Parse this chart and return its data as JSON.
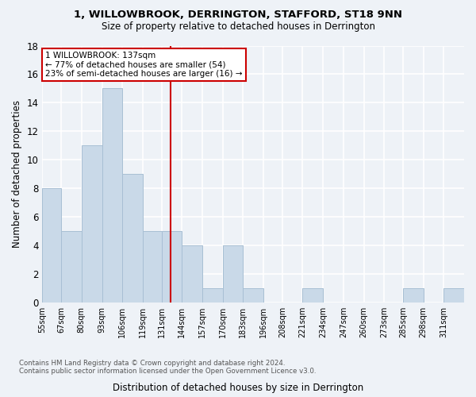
{
  "title1": "1, WILLOWBROOK, DERRINGTON, STAFFORD, ST18 9NN",
  "title2": "Size of property relative to detached houses in Derrington",
  "xlabel": "Distribution of detached houses by size in Derrington",
  "ylabel": "Number of detached properties",
  "footnote1": "Contains HM Land Registry data © Crown copyright and database right 2024.",
  "footnote2": "Contains public sector information licensed under the Open Government Licence v3.0.",
  "bin_labels": [
    "55sqm",
    "67sqm",
    "80sqm",
    "93sqm",
    "106sqm",
    "119sqm",
    "131sqm",
    "144sqm",
    "157sqm",
    "170sqm",
    "183sqm",
    "196sqm",
    "208sqm",
    "221sqm",
    "234sqm",
    "247sqm",
    "260sqm",
    "273sqm",
    "285sqm",
    "298sqm",
    "311sqm"
  ],
  "bin_edges": [
    55,
    67,
    80,
    93,
    106,
    119,
    131,
    144,
    157,
    170,
    183,
    196,
    208,
    221,
    234,
    247,
    260,
    273,
    285,
    298,
    311,
    324
  ],
  "counts": [
    8,
    5,
    11,
    15,
    9,
    5,
    5,
    4,
    1,
    4,
    1,
    0,
    0,
    1,
    0,
    0,
    0,
    0,
    1,
    0,
    1
  ],
  "bar_color": "#c9d9e8",
  "bar_edge_color": "#a8bfd4",
  "property_value": 137,
  "vline_color": "#cc0000",
  "annotation_line1": "1 WILLOWBROOK: 137sqm",
  "annotation_line2": "← 77% of detached houses are smaller (54)",
  "annotation_line3": "23% of semi-detached houses are larger (16) →",
  "annotation_box_color": "white",
  "annotation_box_edge": "#cc0000",
  "ylim": [
    0,
    18
  ],
  "yticks": [
    0,
    2,
    4,
    6,
    8,
    10,
    12,
    14,
    16,
    18
  ],
  "background_color": "#eef2f7",
  "grid_color": "white",
  "plot_bg_color": "#eef2f7"
}
